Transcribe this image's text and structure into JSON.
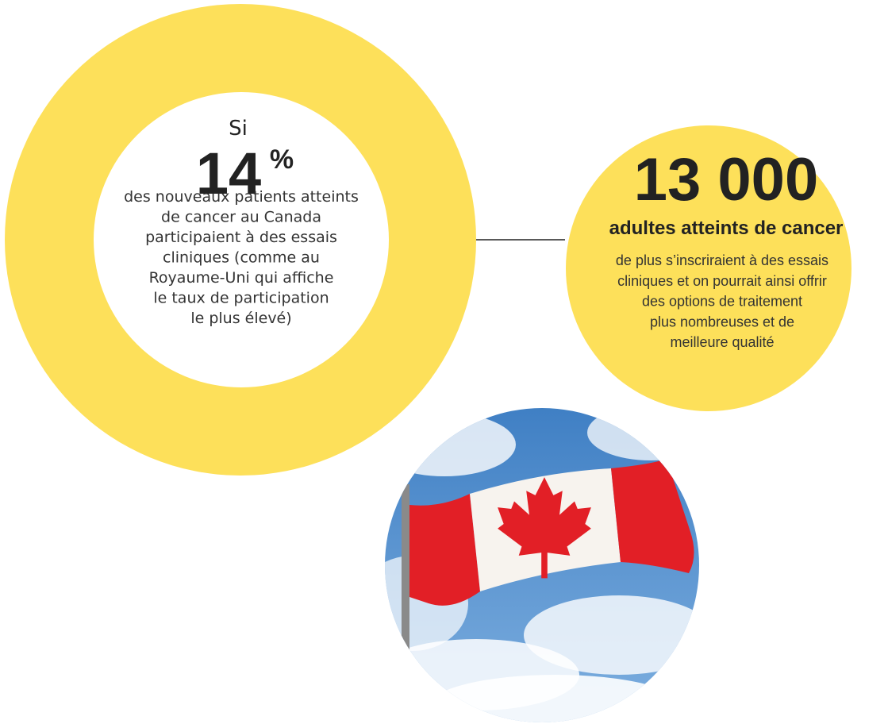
{
  "left": {
    "intro": "Si",
    "number": "14",
    "unit": "%",
    "lines": [
      "des nouveaux patients atteints",
      "de cancer au Canada",
      "participaient à des essais",
      "cliniques (comme au",
      "Royaume-Uni qui affiche",
      "le taux de participation",
      "le plus élevé)"
    ]
  },
  "right": {
    "number": "13 000",
    "headline": "adultes atteints de cancer",
    "lines": [
      "de plus s’inscriraient à des essais",
      "cliniques et on pourrait ainsi offrir",
      "des options de traitement",
      "plus nombreuses et de",
      "meilleure qualité"
    ]
  }
}
